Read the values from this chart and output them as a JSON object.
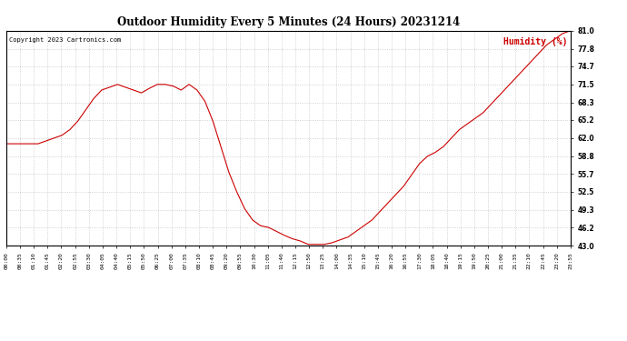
{
  "title": "Outdoor Humidity Every 5 Minutes (24 Hours) 20231214",
  "copyright": "Copyright 2023 Cartronics.com",
  "legend_label": "Humidity (%)",
  "line_color": "#cc0000",
  "legend_color": "#cc0000",
  "background_color": "#ffffff",
  "grid_color": "#b0b0b0",
  "ylim": [
    43.0,
    81.0
  ],
  "yticks": [
    43.0,
    46.2,
    49.3,
    52.5,
    55.7,
    58.8,
    62.0,
    65.2,
    68.3,
    71.5,
    74.7,
    77.8,
    81.0
  ],
  "xtick_labels": [
    "00:00",
    "00:35",
    "01:10",
    "01:45",
    "02:20",
    "02:55",
    "03:30",
    "04:05",
    "04:40",
    "05:15",
    "05:50",
    "06:25",
    "07:00",
    "07:35",
    "08:10",
    "08:45",
    "09:20",
    "09:55",
    "10:30",
    "11:05",
    "11:40",
    "12:15",
    "12:50",
    "13:25",
    "14:00",
    "14:35",
    "15:10",
    "15:45",
    "16:20",
    "16:55",
    "17:30",
    "18:05",
    "18:40",
    "19:15",
    "19:50",
    "20:25",
    "21:00",
    "21:35",
    "22:10",
    "22:45",
    "23:20",
    "23:55"
  ],
  "humidity_values": [
    61.0,
    61.0,
    61.0,
    61.0,
    61.0,
    61.5,
    62.0,
    62.5,
    63.5,
    65.0,
    67.0,
    69.0,
    70.5,
    71.0,
    71.5,
    71.0,
    70.5,
    70.0,
    70.8,
    71.5,
    71.5,
    71.2,
    70.5,
    71.5,
    70.5,
    68.5,
    65.0,
    60.5,
    56.0,
    52.5,
    49.5,
    47.5,
    46.5,
    46.2,
    45.5,
    44.8,
    44.2,
    43.8,
    43.2,
    43.2,
    43.2,
    43.5,
    44.0,
    44.5,
    45.5,
    46.5,
    47.5,
    49.0,
    50.5,
    52.0,
    53.5,
    55.5,
    57.5,
    58.8,
    59.5,
    60.5,
    62.0,
    63.5,
    64.5,
    65.5,
    66.5,
    68.0,
    69.5,
    71.0,
    72.5,
    74.0,
    75.5,
    77.0,
    78.5,
    79.5,
    80.5,
    81.0
  ]
}
